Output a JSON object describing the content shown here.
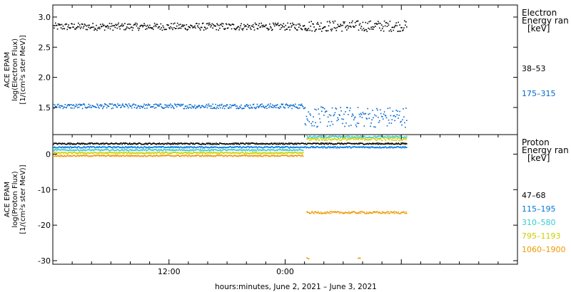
{
  "chart_data": [
    {
      "type": "scatter",
      "panel": "electron",
      "ylabel": [
        "ACE EPAM",
        "log(Electron Flux)",
        "[1/(cm²s ster MeV)]"
      ],
      "ylim": [
        1.05,
        3.2
      ],
      "yticks": [
        1.5,
        2.0,
        2.5,
        3.0
      ],
      "ytick_labels": [
        "1.5",
        "2.0",
        "2.5",
        "3.0"
      ],
      "xlim_hours": [
        0,
        48
      ],
      "legend_title": [
        "Electron",
        "Energy ran",
        "[keV]"
      ],
      "series": [
        {
          "name": "38–53",
          "color": "#000000",
          "segments": [
            {
              "x_start": 0,
              "x_end": 26.0,
              "y_mid": 2.85,
              "y_spread": 0.06
            },
            {
              "x_start": 26.0,
              "x_end": 36.5,
              "y_mid": 2.86,
              "y_spread": 0.09
            }
          ]
        },
        {
          "name": "175–315",
          "color": "#0066cc",
          "segments": [
            {
              "x_start": 0,
              "x_end": 26.0,
              "y_mid": 1.53,
              "y_spread": 0.04
            },
            {
              "x_start": 26.0,
              "x_end": 36.5,
              "y_mid": 1.35,
              "y_spread": 0.17
            }
          ]
        }
      ]
    },
    {
      "type": "scatter",
      "panel": "proton",
      "xlabel": "hours:minutes,  June  2, 2021 – June  3, 2021",
      "ylabel": [
        "ACE EPAM",
        "log(Proton Flux)",
        "[1/(cm²s ster MeV)]"
      ],
      "ylim": [
        -31,
        5.5
      ],
      "yticks": [
        -30,
        -20,
        -10,
        0
      ],
      "ytick_labels": [
        "-30",
        "-20",
        "-10",
        "0"
      ],
      "xlim_hours": [
        0,
        48
      ],
      "xticks_hours": [
        12,
        24
      ],
      "xtick_labels": [
        "12:00",
        "0:00"
      ],
      "legend_title": [
        "Proton",
        "Energy ran",
        "[keV]"
      ],
      "series": [
        {
          "name": "47–68",
          "color": "#000000",
          "segments": [
            {
              "x_start": 0,
              "x_end": 36.5,
              "y_mid": 3.1,
              "y_spread": 0.2
            }
          ]
        },
        {
          "name": "115–195",
          "color": "#0077dd",
          "segments": [
            {
              "x_start": 0,
              "x_end": 36.5,
              "y_mid": 2.1,
              "y_spread": 0.2
            }
          ]
        },
        {
          "name": "310–580",
          "color": "#33cccc",
          "segments": [
            {
              "x_start": 0,
              "x_end": 25.8,
              "y_mid": 1.3,
              "y_spread": 0.2
            },
            {
              "x_start": 26.2,
              "x_end": 36.5,
              "y_mid": 5.0,
              "y_spread": 0.3
            }
          ]
        },
        {
          "name": "795–1193",
          "color": "#cccc00",
          "segments": [
            {
              "x_start": 0,
              "x_end": 25.8,
              "y_mid": 0.5,
              "y_spread": 0.2
            },
            {
              "x_start": 26.2,
              "x_end": 36.5,
              "y_mid": 4.4,
              "y_spread": 0.4
            }
          ]
        },
        {
          "name": "1060–1900",
          "color": "#ee9900",
          "segments": [
            {
              "x_start": 0,
              "x_end": 25.8,
              "y_mid": -0.3,
              "y_spread": 0.2
            },
            {
              "x_start": 26.2,
              "x_end": 36.5,
              "y_mid": -16.3,
              "y_spread": 0.3
            },
            {
              "x_start": 26.2,
              "x_end": 26.4,
              "y_mid": -29.2,
              "y_spread": 0.2
            },
            {
              "x_start": 31.5,
              "x_end": 31.7,
              "y_mid": -29.2,
              "y_spread": 0.2
            }
          ]
        }
      ]
    }
  ]
}
